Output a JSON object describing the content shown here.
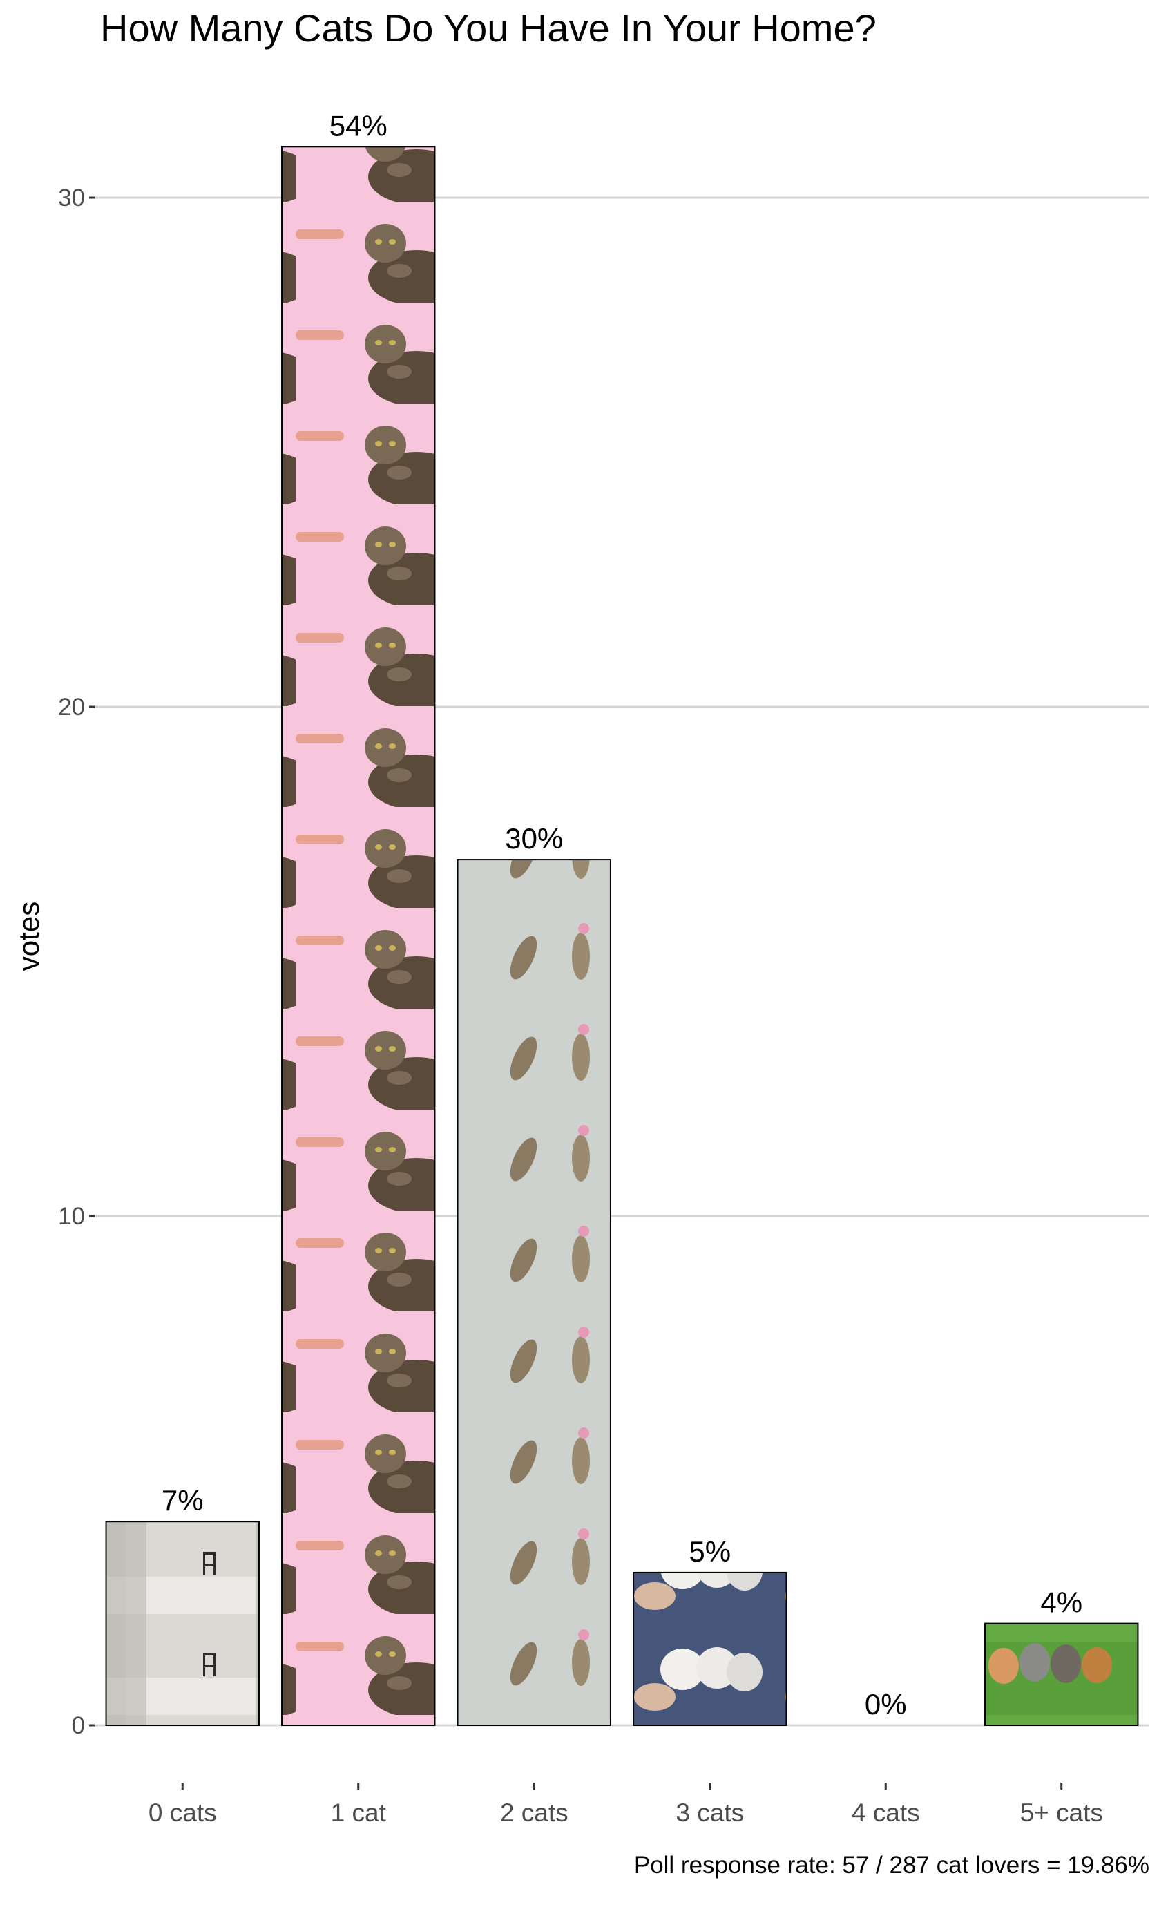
{
  "chart_data": {
    "type": "bar",
    "title": "How Many Cats Do You Have In Your Home?",
    "ylabel": "votes",
    "xlabel": "",
    "categories": [
      "0 cats",
      "1 cat",
      "2 cats",
      "3 cats",
      "4 cats",
      "5+ cats"
    ],
    "values": [
      4,
      31,
      17,
      3,
      0,
      2
    ],
    "percent_labels": [
      "7%",
      "54%",
      "30%",
      "5%",
      "0%",
      "4%"
    ],
    "ylim": [
      0,
      31
    ],
    "yticks": [
      0,
      10,
      20,
      30
    ],
    "grid": "horizontal",
    "legend": "none",
    "colors": {
      "grid": "#d4d4d4",
      "bar_border": "#000000",
      "tick_text": "#4d4d4d",
      "fill_0": "#d8d5d0",
      "fill_1": "#f7c4dc",
      "fill_2": "#cfd3cf",
      "fill_3": "#4a5a78",
      "fill_5": "#5aa03a"
    },
    "bar_images": [
      "empty-room-chair",
      "tabby-cat-pink-background",
      "two-kittens-jumping",
      "white-kittens-held",
      "",
      "kittens-on-grass"
    ]
  },
  "caption": "Poll response rate: 57 / 287 cat lovers = 19.86%"
}
